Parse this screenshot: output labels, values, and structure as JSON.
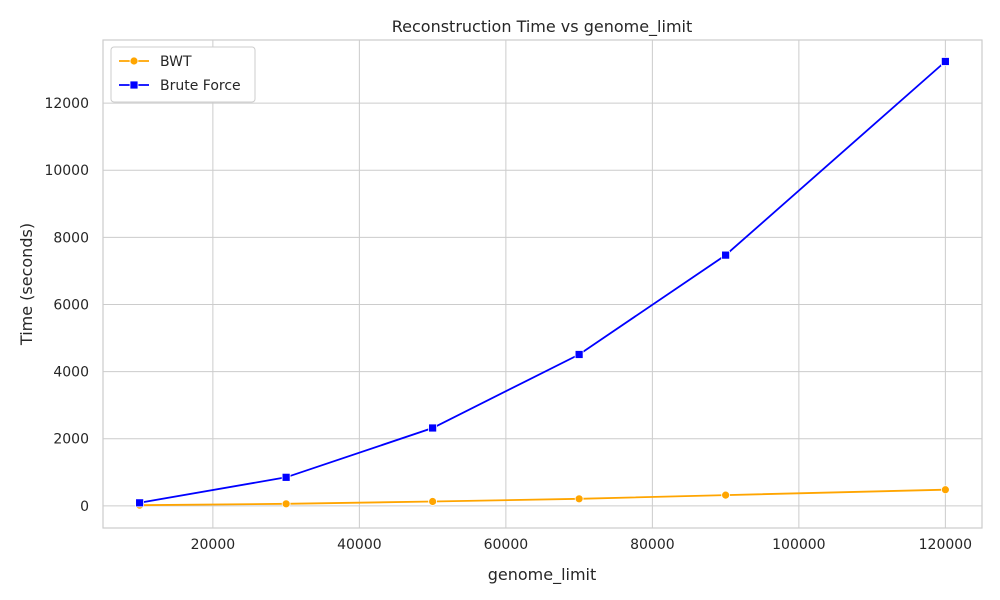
{
  "chart_data": {
    "type": "line",
    "title": "Reconstruction Time vs genome_limit",
    "xlabel": "genome_limit",
    "ylabel": "Time (seconds)",
    "xlim": [
      5000,
      125000
    ],
    "ylim": [
      -660,
      13880
    ],
    "xticks": [
      20000,
      40000,
      60000,
      80000,
      100000,
      120000
    ],
    "yticks": [
      0,
      2000,
      4000,
      6000,
      8000,
      10000,
      12000
    ],
    "grid": true,
    "legend_position": "top-left",
    "series": [
      {
        "name": "BWT",
        "color": "#ffa500",
        "marker": "circle",
        "x": [
          10000,
          30000,
          50000,
          70000,
          90000,
          120000
        ],
        "y": [
          20,
          60,
          130,
          210,
          320,
          480
        ]
      },
      {
        "name": "Brute Force",
        "color": "#0000ff",
        "marker": "square",
        "x": [
          10000,
          30000,
          50000,
          70000,
          90000,
          120000
        ],
        "y": [
          90,
          850,
          2320,
          4510,
          7470,
          13240
        ]
      }
    ]
  }
}
